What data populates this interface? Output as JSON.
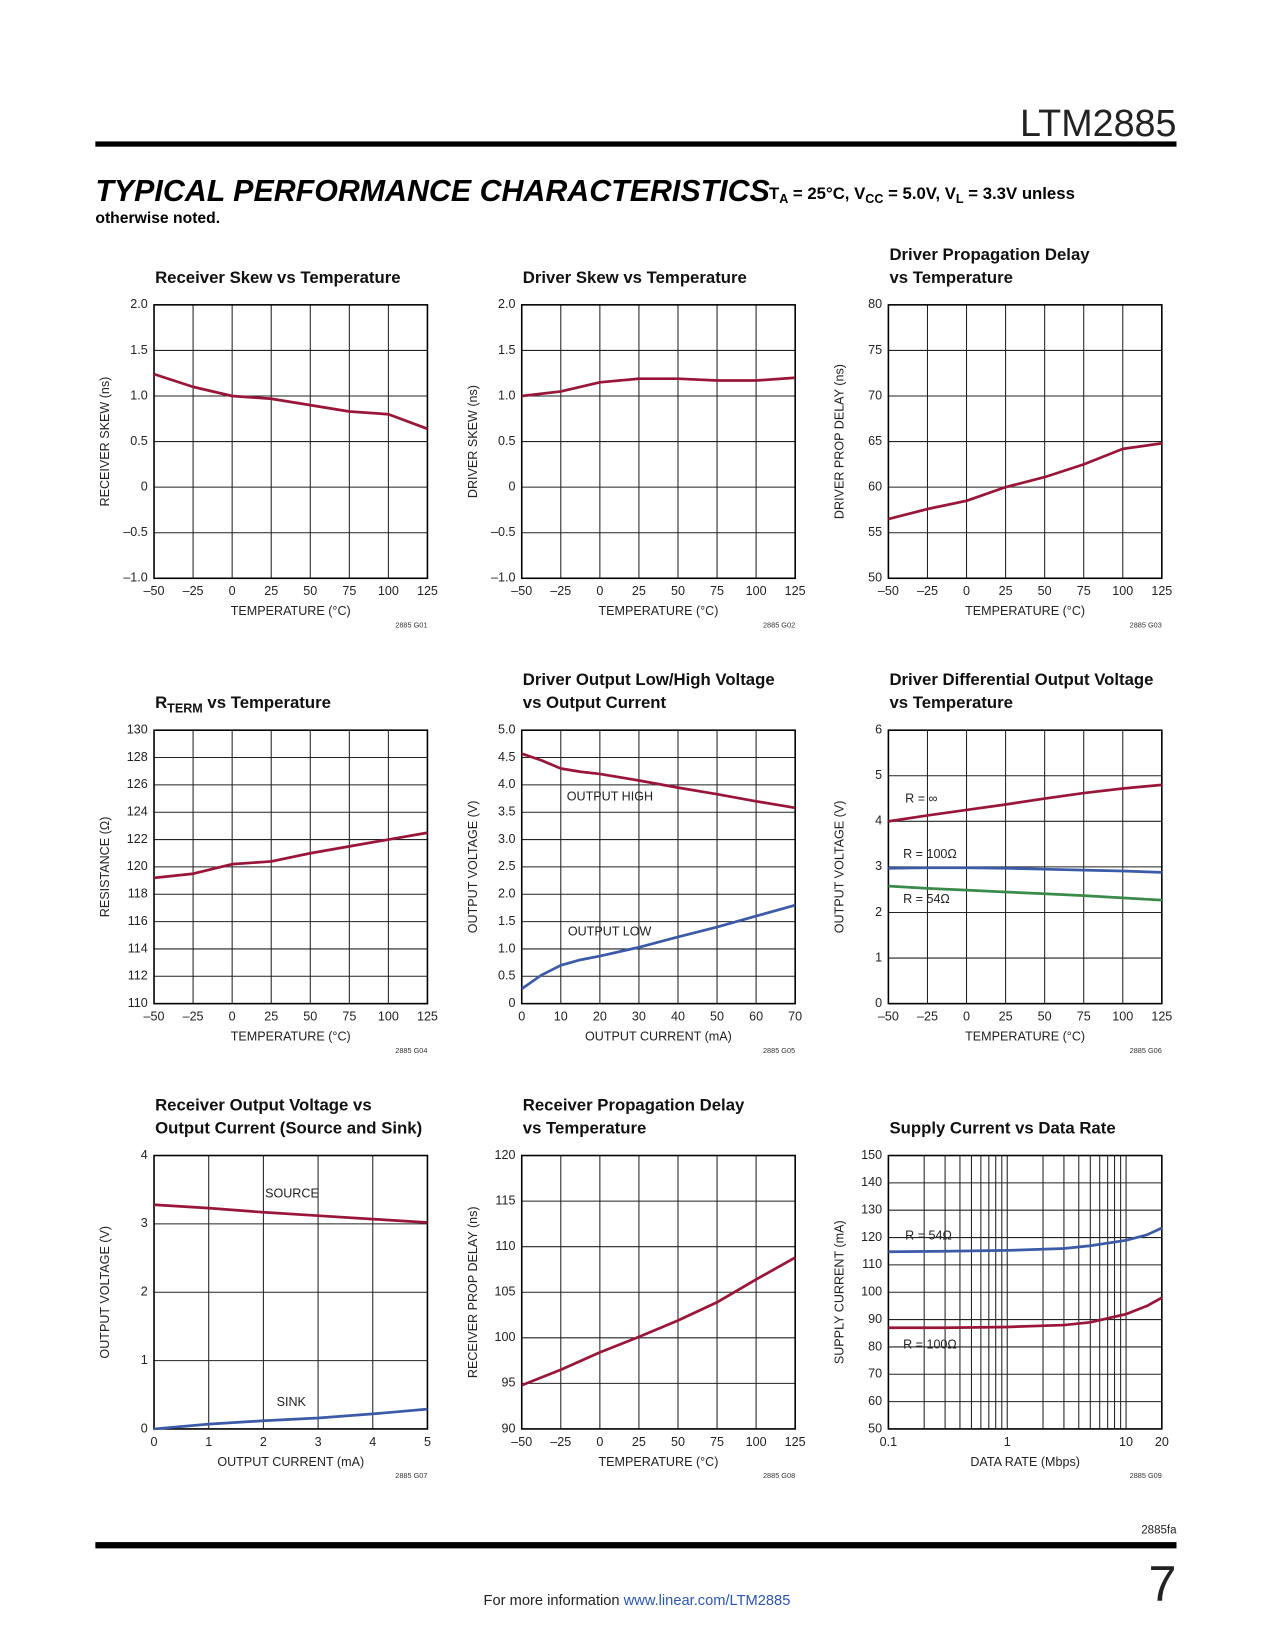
{
  "header": {
    "part": "LTM2885",
    "section": "TYPICAL PERFORMANCE CHARACTERISTICS",
    "conditions": [
      "T",
      {
        "sub": "A"
      },
      " = 25°C, V",
      {
        "sub": "CC"
      },
      " = 5.0V, V",
      {
        "sub": "L"
      },
      " = 3.3V unless"
    ],
    "conditions_cont": "otherwise noted."
  },
  "chart_data": [
    {
      "type": "line",
      "title": [
        [
          "Receiver Skew vs Temperature"
        ]
      ],
      "ylabel": "RECEIVER SKEW (ns)",
      "xlabel": "TEMPERATURE (°C)",
      "note": "2885 G01",
      "x": [
        -50,
        -25,
        0,
        25,
        50,
        75,
        100,
        125
      ],
      "values": [
        1.24,
        1.1,
        1.0,
        0.97,
        0.9,
        0.83,
        0.8,
        0.64
      ],
      "color": "#9a1638",
      "xlim": [
        -50,
        125
      ],
      "ylim": [
        -1,
        2
      ],
      "xticks": [
        {
          "value": -50,
          "label": "–50"
        },
        {
          "value": -25,
          "label": "–25"
        },
        0,
        25,
        50,
        75,
        100,
        125
      ],
      "yticks": [
        {
          "value": -1,
          "label": "–1.0"
        },
        {
          "value": -0.5,
          "label": "–0.5"
        },
        0,
        0.5,
        {
          "value": 1,
          "label": "1.0"
        },
        1.5,
        {
          "value": 2,
          "label": "2.0"
        }
      ],
      "grid": true
    },
    {
      "type": "line",
      "title": [
        [
          "Driver Skew vs Temperature"
        ]
      ],
      "ylabel": "DRIVER SKEW (ns)",
      "xlabel": "TEMPERATURE (°C)",
      "note": "2885 G02",
      "x": [
        -50,
        -25,
        0,
        25,
        50,
        75,
        100,
        125
      ],
      "values": [
        1.0,
        1.05,
        1.15,
        1.19,
        1.19,
        1.17,
        1.17,
        1.2
      ],
      "color": "#9a1638",
      "xlim": [
        -50,
        125
      ],
      "ylim": [
        -1,
        2
      ],
      "xticks": [
        {
          "value": -50,
          "label": "–50"
        },
        {
          "value": -25,
          "label": "–25"
        },
        0,
        25,
        50,
        75,
        100,
        125
      ],
      "yticks": [
        {
          "value": -1,
          "label": "–1.0"
        },
        {
          "value": -0.5,
          "label": "–0.5"
        },
        0,
        0.5,
        {
          "value": 1,
          "label": "1.0"
        },
        1.5,
        {
          "value": 2,
          "label": "2.0"
        }
      ],
      "grid": true
    },
    {
      "type": "line",
      "title": [
        [
          "Driver Propagation Delay"
        ],
        [
          "vs Temperature"
        ]
      ],
      "ylabel": "DRIVER PROP DELAY (ns)",
      "xlabel": "TEMPERATURE (°C)",
      "note": "2885 G03",
      "x": [
        -50,
        -25,
        0,
        25,
        50,
        75,
        100,
        125
      ],
      "values": [
        56.5,
        57.6,
        58.5,
        60,
        61.1,
        62.5,
        64.2,
        64.8
      ],
      "color": "#9a1638",
      "xlim": [
        -50,
        125
      ],
      "ylim": [
        50,
        80
      ],
      "xticks": [
        {
          "value": -50,
          "label": "–50"
        },
        {
          "value": -25,
          "label": "–25"
        },
        0,
        25,
        50,
        75,
        100,
        125
      ],
      "yticks": [
        50,
        55,
        60,
        65,
        70,
        75,
        80
      ],
      "grid": true
    },
    {
      "type": "line",
      "title": [
        [
          "R",
          {
            "sub": "TERM"
          },
          " vs Temperature"
        ]
      ],
      "ylabel": "RESISTANCE (Ω)",
      "xlabel": "TEMPERATURE (°C)",
      "note": "2885 G04",
      "x": [
        -50,
        -25,
        0,
        25,
        50,
        75,
        100,
        125
      ],
      "values": [
        119.2,
        119.5,
        120.2,
        120.4,
        121,
        121.5,
        122,
        122.5
      ],
      "color": "#9a1638",
      "xlim": [
        -50,
        125
      ],
      "ylim": [
        110,
        130
      ],
      "xticks": [
        {
          "value": -50,
          "label": "–50"
        },
        {
          "value": -25,
          "label": "–25"
        },
        0,
        25,
        50,
        75,
        100,
        125
      ],
      "yticks": [
        110,
        112,
        114,
        116,
        118,
        120,
        122,
        124,
        126,
        128,
        130
      ],
      "grid": true
    },
    {
      "type": "line",
      "title": [
        [
          "Driver Output Low/High Voltage"
        ],
        [
          "vs Output Current"
        ]
      ],
      "ylabel": "OUTPUT VOLTAGE (V)",
      "xlabel": "OUTPUT CURRENT (mA)",
      "note": "2885 G05",
      "x": [
        0,
        5,
        10,
        15,
        20,
        30,
        40,
        50,
        60,
        70
      ],
      "series": [
        {
          "name": "OUTPUT HIGH",
          "color": "#9a1638",
          "values": [
            4.57,
            4.45,
            4.3,
            4.24,
            4.2,
            4.08,
            3.95,
            3.83,
            3.7,
            3.58
          ]
        },
        {
          "name": "OUTPUT LOW",
          "color": "#3b5aa8",
          "values": [
            0.27,
            0.52,
            0.7,
            0.8,
            0.87,
            1.03,
            1.22,
            1.4,
            1.6,
            1.8
          ]
        }
      ],
      "xlim": [
        0,
        70
      ],
      "ylim": [
        0,
        5
      ],
      "xticks": [
        0,
        10,
        20,
        30,
        40,
        50,
        60,
        70
      ],
      "yticks": [
        0,
        0.5,
        {
          "value": 1,
          "label": "1.0"
        },
        1.5,
        {
          "value": 2,
          "label": "2.0"
        },
        2.5,
        {
          "value": 3,
          "label": "3.0"
        },
        3.5,
        {
          "value": 4,
          "label": "4.0"
        },
        4.5,
        {
          "value": 5,
          "label": "5.0"
        }
      ],
      "grid": true
    },
    {
      "type": "line",
      "title": [
        [
          "Driver Differential Output Voltage"
        ],
        [
          "vs Temperature"
        ]
      ],
      "ylabel": "OUTPUT VOLTAGE (V)",
      "xlabel": "TEMPERATURE (°C)",
      "note": "2885 G06",
      "x": [
        -50,
        -25,
        0,
        25,
        50,
        75,
        100,
        125
      ],
      "series": [
        {
          "name": "R = ∞",
          "color": "#9a1638",
          "values": [
            4.0,
            4.13,
            4.25,
            4.37,
            4.5,
            4.62,
            4.72,
            4.8
          ]
        },
        {
          "name": "R = 100Ω",
          "color": "#3b5aa8",
          "values": [
            2.97,
            2.98,
            2.98,
            2.97,
            2.95,
            2.93,
            2.91,
            2.88
          ]
        },
        {
          "name": "R = 54Ω",
          "color": "#3a8a4a",
          "values": [
            2.58,
            2.53,
            2.49,
            2.45,
            2.41,
            2.37,
            2.32,
            2.27
          ]
        }
      ],
      "xlim": [
        -50,
        125
      ],
      "ylim": [
        0,
        6
      ],
      "xticks": [
        {
          "value": -50,
          "label": "–50"
        },
        {
          "value": -25,
          "label": "–25"
        },
        0,
        25,
        50,
        75,
        100,
        125
      ],
      "yticks": [
        0,
        1,
        2,
        3,
        4,
        5,
        6
      ],
      "grid": true
    },
    {
      "type": "line",
      "title": [
        [
          "Receiver Output Voltage vs"
        ],
        [
          "Output Current (Source and Sink)"
        ]
      ],
      "ylabel": "OUTPUT VOLTAGE (V)",
      "xlabel": "OUTPUT CURRENT (mA)",
      "note": "2885 G07",
      "x": [
        0,
        1,
        2,
        3,
        4,
        5
      ],
      "series": [
        {
          "name": "SOURCE",
          "color": "#9a1638",
          "values": [
            3.28,
            3.23,
            3.17,
            3.12,
            3.07,
            3.02
          ]
        },
        {
          "name": "SINK",
          "color": "#3b5aa8",
          "values": [
            0,
            0.07,
            0.12,
            0.16,
            0.22,
            0.29
          ]
        }
      ],
      "xlim": [
        0,
        5
      ],
      "ylim": [
        0,
        4
      ],
      "xticks": [
        0,
        1,
        2,
        3,
        4,
        5
      ],
      "yticks": [
        0,
        1,
        2,
        3,
        4
      ],
      "grid": true
    },
    {
      "type": "line",
      "title": [
        [
          "Receiver Propagation Delay"
        ],
        [
          "vs Temperature"
        ]
      ],
      "ylabel": "RECEIVER PROP DELAY (ns)",
      "xlabel": "TEMPERATURE (°C)",
      "note": "2885 G08",
      "x": [
        -50,
        -25,
        0,
        25,
        50,
        75,
        100,
        125
      ],
      "values": [
        94.8,
        96.5,
        98.4,
        100.1,
        101.9,
        103.9,
        106.4,
        108.8
      ],
      "color": "#9a1638",
      "xlim": [
        -50,
        125
      ],
      "ylim": [
        90,
        120
      ],
      "xticks": [
        {
          "value": -50,
          "label": "–50"
        },
        {
          "value": -25,
          "label": "–25"
        },
        0,
        25,
        50,
        75,
        100,
        125
      ],
      "yticks": [
        90,
        95,
        100,
        105,
        110,
        115,
        120
      ],
      "grid": true
    },
    {
      "type": "line",
      "title": [
        [
          "Supply Current vs Data Rate"
        ]
      ],
      "ylabel": "SUPPLY CURRENT (mA)",
      "xlabel": "DATA RATE (Mbps)",
      "note": "2885 G09",
      "x": [
        0.1,
        0.3,
        1,
        3,
        5,
        10,
        15,
        20
      ],
      "series": [
        {
          "name": "R = 54Ω",
          "color": "#3b5aa8",
          "values": [
            114.8,
            115,
            115.3,
            116,
            117,
            119,
            121,
            123.5
          ]
        },
        {
          "name": "R = 100Ω",
          "color": "#9a1638",
          "values": [
            87,
            87,
            87.3,
            88,
            89,
            92,
            95,
            98
          ]
        }
      ],
      "xlog": true,
      "xlim": [
        0.1,
        20
      ],
      "ylim": [
        50,
        150
      ],
      "xticks": [
        0.1,
        1,
        10,
        20
      ],
      "x_minor_grid": [
        0.2,
        0.3,
        0.4,
        0.5,
        0.6,
        0.7,
        0.8,
        0.9,
        2,
        3,
        4,
        5,
        6,
        7,
        8,
        9
      ],
      "yticks": [
        50,
        60,
        70,
        80,
        90,
        100,
        110,
        120,
        130,
        140,
        150
      ],
      "grid": true
    }
  ],
  "footer": {
    "code": "2885fa",
    "page": "7",
    "info": "For more information ",
    "link": "www.linear.com/LTM2885"
  }
}
